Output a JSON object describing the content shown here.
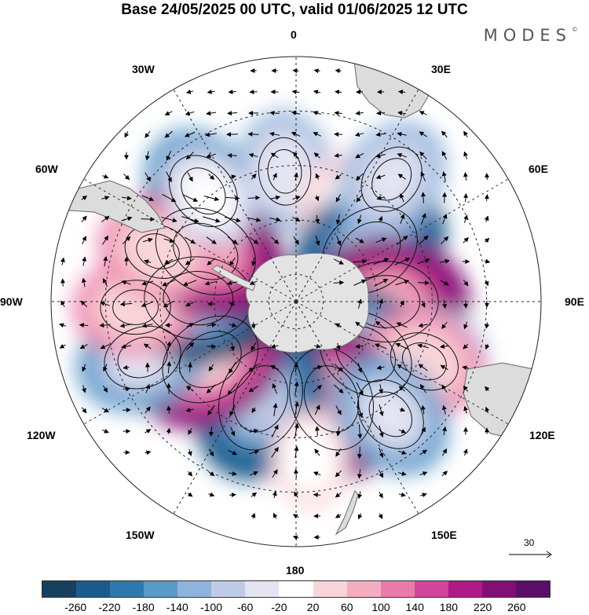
{
  "title": "Base 24/05/2025 00 UTC, valid 01/06/2025 12 UTC",
  "brand": "MODES",
  "brand_mark": "©",
  "longitude_labels": {
    "top": "0",
    "top_right": "30E",
    "right_upper": "60E",
    "right": "90E",
    "right_lower": "120E",
    "bottom_right": "150E",
    "bottom": "180",
    "bottom_left": "150W",
    "left_lower": "120W",
    "left": "90W",
    "left_upper": "60W",
    "top_left": "30W"
  },
  "reference_vector": "30",
  "colorbar": {
    "ticks": [
      "-260",
      "-220",
      "-180",
      "-140",
      "-100",
      "-60",
      "-20",
      "20",
      "60",
      "100",
      "140",
      "180",
      "220",
      "260"
    ],
    "colors": [
      "#173f5f",
      "#1d5b8c",
      "#2f78ae",
      "#5a9ac8",
      "#8eb4db",
      "#bfcbe6",
      "#e4e4f2",
      "#ffffff",
      "#f9d4d9",
      "#f4adbf",
      "#ea7bac",
      "#d3449b",
      "#b01a86",
      "#820f76",
      "#5a0f6a"
    ]
  },
  "map_features": {
    "projection": "south-polar-stereographic",
    "colors": {
      "ice": "#e3e3e3",
      "coast": "#555555",
      "grid": "#222222",
      "arrow": "#000000"
    }
  },
  "anomalies": [
    {
      "lon": -40,
      "lat": -37,
      "value": -150
    },
    {
      "lon": -5,
      "lat": -42,
      "value": -110
    },
    {
      "lon": 25,
      "lat": -50,
      "value": 60
    },
    {
      "lon": 55,
      "lat": -57,
      "value": -240
    },
    {
      "lon": 38,
      "lat": -33,
      "value": -120
    },
    {
      "lon": 90,
      "lat": -57,
      "value": 250
    },
    {
      "lon": 110,
      "lat": -36,
      "value": -80
    },
    {
      "lon": 127,
      "lat": -58,
      "value": -230
    },
    {
      "lon": 115,
      "lat": -38,
      "value": 120
    },
    {
      "lon": 160,
      "lat": -52,
      "value": 250
    },
    {
      "lon": 140,
      "lat": -36,
      "value": -140
    },
    {
      "lon": 200,
      "lat": -52,
      "value": -250
    },
    {
      "lon": 236,
      "lat": -52,
      "value": 240
    },
    {
      "lon": 250,
      "lat": -30,
      "value": -150
    },
    {
      "lon": 272,
      "lat": -54,
      "value": -260
    },
    {
      "lon": 268,
      "lat": -31,
      "value": 120
    },
    {
      "lon": 299,
      "lat": -52,
      "value": 250
    },
    {
      "lon": 290,
      "lat": -36,
      "value": 110
    },
    {
      "lon": 175,
      "lat": -32,
      "value": 40
    },
    {
      "lon": 320,
      "lat": -40,
      "value": -60
    }
  ]
}
